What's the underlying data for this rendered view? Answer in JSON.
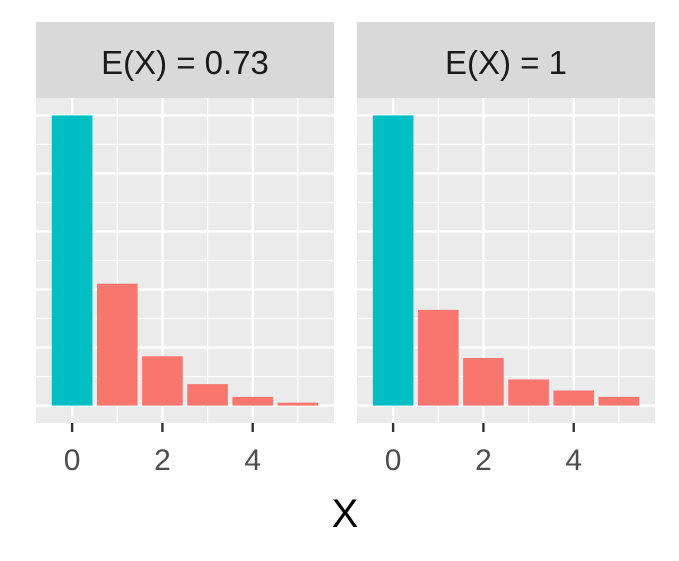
{
  "colors": {
    "panel_bg": "#EBEBEB",
    "strip_bg": "#D9D9D9",
    "grid": "#FFFFFF",
    "zero_bar": "#00BFC4",
    "other_bars": "#F8766D",
    "tick": "#333333"
  },
  "chart_data": {
    "type": "bar",
    "facet": true,
    "xlabel": "X",
    "x_ticks": [
      "0",
      "2",
      "4"
    ],
    "x": [
      0,
      1,
      2,
      3,
      4,
      5
    ],
    "xlim": [
      -0.8,
      5.8
    ],
    "ylim": [
      -0.03,
      0.53
    ],
    "y_tick_labels_shown": false,
    "grid": true,
    "legend": "none",
    "panels": [
      {
        "title": "E(X) = 0.73",
        "values": [
          0.5,
          0.21,
          0.085,
          0.037,
          0.015,
          0.005
        ]
      },
      {
        "title": "E(X) = 1",
        "values": [
          0.5,
          0.165,
          0.082,
          0.045,
          0.026,
          0.015
        ]
      }
    ]
  }
}
